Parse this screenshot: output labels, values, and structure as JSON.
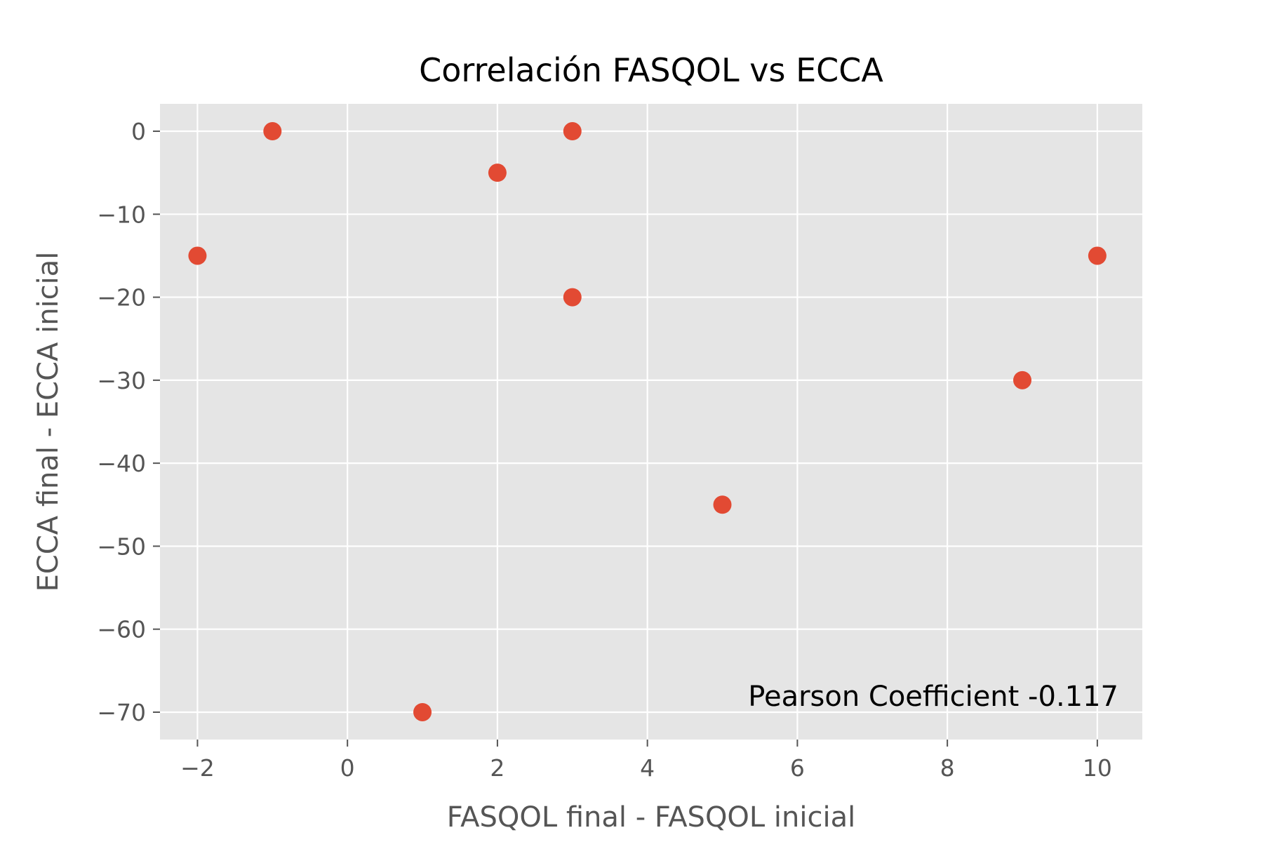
{
  "chart_data": {
    "type": "scatter",
    "title": "Correlación FASQOL vs ECCA",
    "xlabel": "FASQOL final - FASQOL inicial",
    "ylabel": "ECCA final - ECCA inicial",
    "xlim": [
      -2.5,
      10.6
    ],
    "ylim": [
      -73.3,
      3.3
    ],
    "xticks": [
      -2,
      0,
      2,
      4,
      6,
      8,
      10
    ],
    "xtick_labels": [
      "−2",
      "0",
      "2",
      "4",
      "6",
      "8",
      "10"
    ],
    "yticks": [
      0,
      -10,
      -20,
      -30,
      -40,
      -50,
      -60,
      -70
    ],
    "ytick_labels": [
      "0",
      "−10",
      "−20",
      "−30",
      "−40",
      "−50",
      "−60",
      "−70"
    ],
    "grid": true,
    "legend": "none",
    "x": [
      -2,
      -1,
      1,
      2,
      3,
      3,
      5,
      9,
      10
    ],
    "y": [
      -15,
      0,
      -70,
      -5,
      0,
      -20,
      -45,
      -30,
      -15
    ],
    "annotation": "Pearson Coefficient -0.117",
    "colors": {
      "marker": "#E24A33",
      "plot_background": "#E5E5E5",
      "grid": "#FFFFFF",
      "tick_text": "#555555"
    }
  }
}
